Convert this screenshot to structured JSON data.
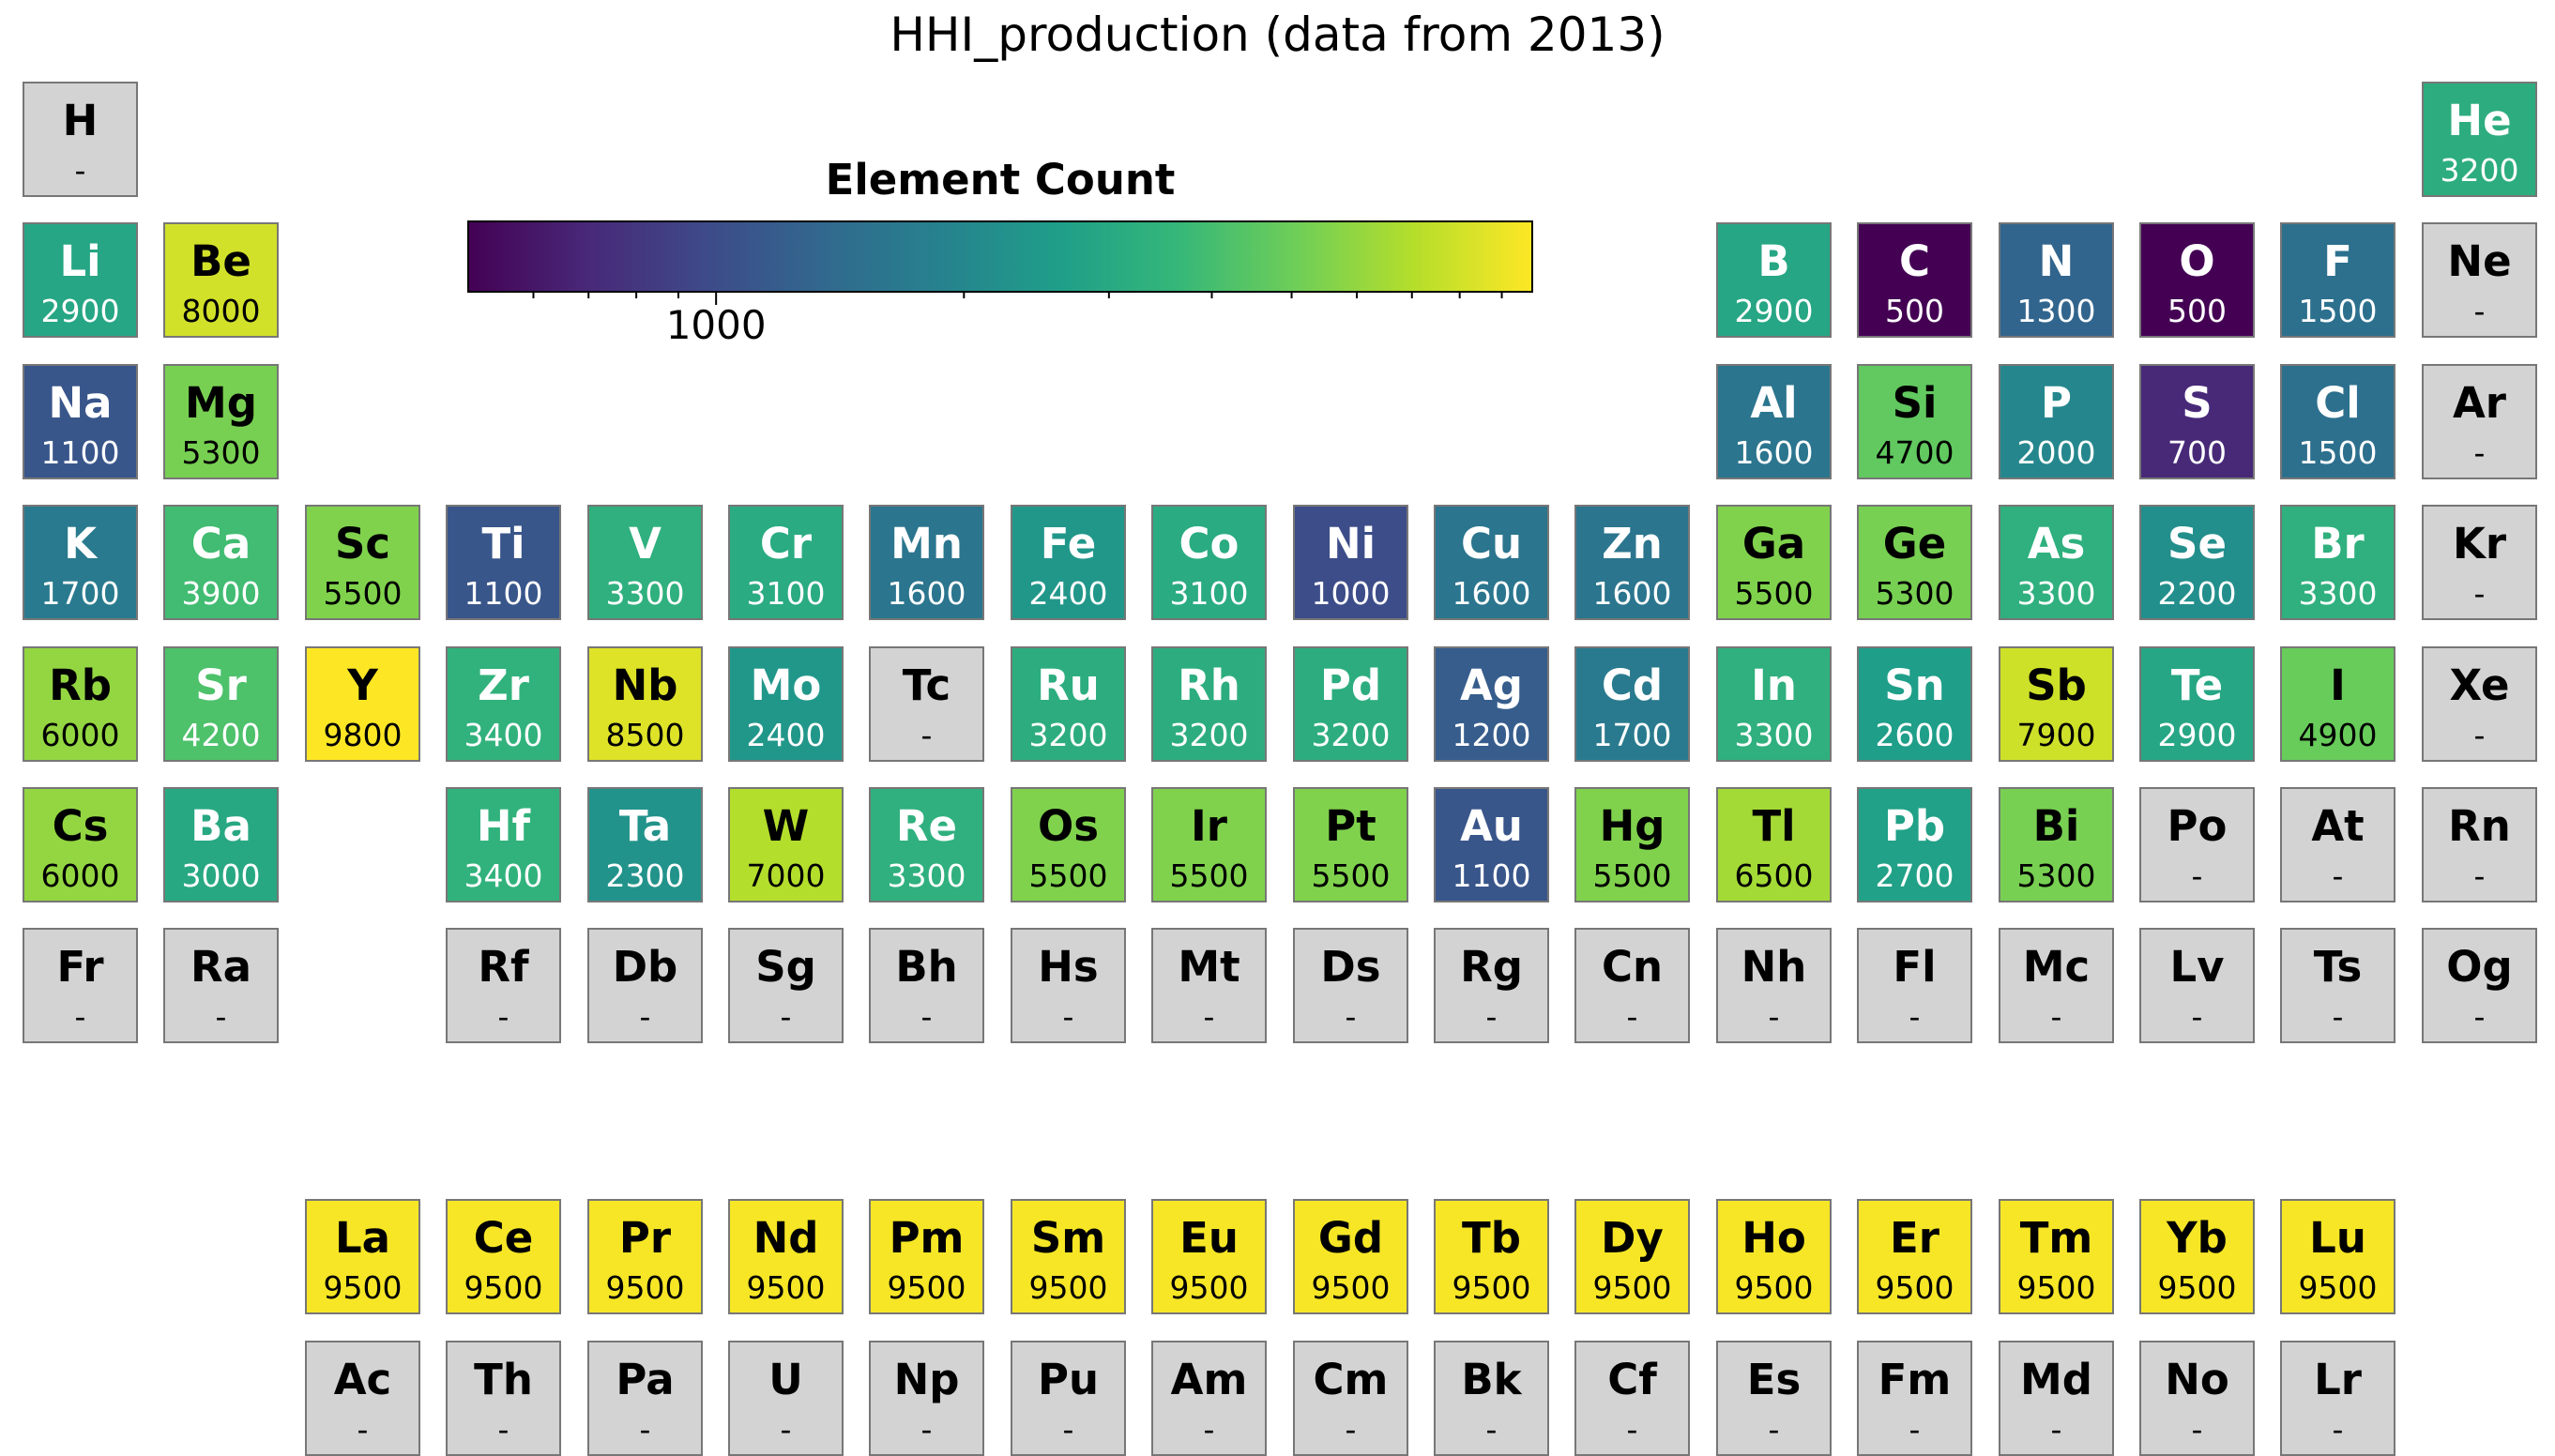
{
  "chart_data": {
    "type": "heatmap",
    "title": "HHI_production (data from 2013)",
    "colorbar": {
      "title": "Element Count",
      "scale": "log",
      "range": [
        500,
        9800
      ],
      "major_ticks": [
        1000
      ],
      "tick_labels": [
        "1000"
      ],
      "minor_ticks": [
        600,
        700,
        800,
        900,
        2000,
        3000,
        4000,
        5000,
        6000,
        7000,
        8000,
        9000
      ],
      "colormap": "viridis",
      "colors": [
        "#440154",
        "#482878",
        "#3e4a89",
        "#31688e",
        "#26828e",
        "#1f9e89",
        "#35b779",
        "#6ece58",
        "#b5de2b",
        "#fde725"
      ]
    },
    "missing_label": "-",
    "missing_color": "#d3d3d3",
    "elements": [
      {
        "symbol": "H",
        "value": null,
        "row": 1,
        "col": 1
      },
      {
        "symbol": "He",
        "value": 3200,
        "row": 1,
        "col": 18
      },
      {
        "symbol": "Li",
        "value": 2900,
        "row": 2,
        "col": 1
      },
      {
        "symbol": "Be",
        "value": 8000,
        "row": 2,
        "col": 2
      },
      {
        "symbol": "B",
        "value": 2900,
        "row": 2,
        "col": 13
      },
      {
        "symbol": "C",
        "value": 500,
        "row": 2,
        "col": 14
      },
      {
        "symbol": "N",
        "value": 1300,
        "row": 2,
        "col": 15
      },
      {
        "symbol": "O",
        "value": 500,
        "row": 2,
        "col": 16
      },
      {
        "symbol": "F",
        "value": 1500,
        "row": 2,
        "col": 17
      },
      {
        "symbol": "Ne",
        "value": null,
        "row": 2,
        "col": 18
      },
      {
        "symbol": "Na",
        "value": 1100,
        "row": 3,
        "col": 1
      },
      {
        "symbol": "Mg",
        "value": 5300,
        "row": 3,
        "col": 2
      },
      {
        "symbol": "Al",
        "value": 1600,
        "row": 3,
        "col": 13
      },
      {
        "symbol": "Si",
        "value": 4700,
        "row": 3,
        "col": 14
      },
      {
        "symbol": "P",
        "value": 2000,
        "row": 3,
        "col": 15
      },
      {
        "symbol": "S",
        "value": 700,
        "row": 3,
        "col": 16
      },
      {
        "symbol": "Cl",
        "value": 1500,
        "row": 3,
        "col": 17
      },
      {
        "symbol": "Ar",
        "value": null,
        "row": 3,
        "col": 18
      },
      {
        "symbol": "K",
        "value": 1700,
        "row": 4,
        "col": 1
      },
      {
        "symbol": "Ca",
        "value": 3900,
        "row": 4,
        "col": 2
      },
      {
        "symbol": "Sc",
        "value": 5500,
        "row": 4,
        "col": 3
      },
      {
        "symbol": "Ti",
        "value": 1100,
        "row": 4,
        "col": 4
      },
      {
        "symbol": "V",
        "value": 3300,
        "row": 4,
        "col": 5
      },
      {
        "symbol": "Cr",
        "value": 3100,
        "row": 4,
        "col": 6
      },
      {
        "symbol": "Mn",
        "value": 1600,
        "row": 4,
        "col": 7
      },
      {
        "symbol": "Fe",
        "value": 2400,
        "row": 4,
        "col": 8
      },
      {
        "symbol": "Co",
        "value": 3100,
        "row": 4,
        "col": 9
      },
      {
        "symbol": "Ni",
        "value": 1000,
        "row": 4,
        "col": 10
      },
      {
        "symbol": "Cu",
        "value": 1600,
        "row": 4,
        "col": 11
      },
      {
        "symbol": "Zn",
        "value": 1600,
        "row": 4,
        "col": 12
      },
      {
        "symbol": "Ga",
        "value": 5500,
        "row": 4,
        "col": 13
      },
      {
        "symbol": "Ge",
        "value": 5300,
        "row": 4,
        "col": 14
      },
      {
        "symbol": "As",
        "value": 3300,
        "row": 4,
        "col": 15
      },
      {
        "symbol": "Se",
        "value": 2200,
        "row": 4,
        "col": 16
      },
      {
        "symbol": "Br",
        "value": 3300,
        "row": 4,
        "col": 17
      },
      {
        "symbol": "Kr",
        "value": null,
        "row": 4,
        "col": 18
      },
      {
        "symbol": "Rb",
        "value": 6000,
        "row": 5,
        "col": 1
      },
      {
        "symbol": "Sr",
        "value": 4200,
        "row": 5,
        "col": 2
      },
      {
        "symbol": "Y",
        "value": 9800,
        "row": 5,
        "col": 3
      },
      {
        "symbol": "Zr",
        "value": 3400,
        "row": 5,
        "col": 4
      },
      {
        "symbol": "Nb",
        "value": 8500,
        "row": 5,
        "col": 5
      },
      {
        "symbol": "Mo",
        "value": 2400,
        "row": 5,
        "col": 6
      },
      {
        "symbol": "Tc",
        "value": null,
        "row": 5,
        "col": 7
      },
      {
        "symbol": "Ru",
        "value": 3200,
        "row": 5,
        "col": 8
      },
      {
        "symbol": "Rh",
        "value": 3200,
        "row": 5,
        "col": 9
      },
      {
        "symbol": "Pd",
        "value": 3200,
        "row": 5,
        "col": 10
      },
      {
        "symbol": "Ag",
        "value": 1200,
        "row": 5,
        "col": 11
      },
      {
        "symbol": "Cd",
        "value": 1700,
        "row": 5,
        "col": 12
      },
      {
        "symbol": "In",
        "value": 3300,
        "row": 5,
        "col": 13
      },
      {
        "symbol": "Sn",
        "value": 2600,
        "row": 5,
        "col": 14
      },
      {
        "symbol": "Sb",
        "value": 7900,
        "row": 5,
        "col": 15
      },
      {
        "symbol": "Te",
        "value": 2900,
        "row": 5,
        "col": 16
      },
      {
        "symbol": "I",
        "value": 4900,
        "row": 5,
        "col": 17
      },
      {
        "symbol": "Xe",
        "value": null,
        "row": 5,
        "col": 18
      },
      {
        "symbol": "Cs",
        "value": 6000,
        "row": 6,
        "col": 1
      },
      {
        "symbol": "Ba",
        "value": 3000,
        "row": 6,
        "col": 2
      },
      {
        "symbol": "Hf",
        "value": 3400,
        "row": 6,
        "col": 4
      },
      {
        "symbol": "Ta",
        "value": 2300,
        "row": 6,
        "col": 5
      },
      {
        "symbol": "W",
        "value": 7000,
        "row": 6,
        "col": 6
      },
      {
        "symbol": "Re",
        "value": 3300,
        "row": 6,
        "col": 7
      },
      {
        "symbol": "Os",
        "value": 5500,
        "row": 6,
        "col": 8
      },
      {
        "symbol": "Ir",
        "value": 5500,
        "row": 6,
        "col": 9
      },
      {
        "symbol": "Pt",
        "value": 5500,
        "row": 6,
        "col": 10
      },
      {
        "symbol": "Au",
        "value": 1100,
        "row": 6,
        "col": 11
      },
      {
        "symbol": "Hg",
        "value": 5500,
        "row": 6,
        "col": 12
      },
      {
        "symbol": "Tl",
        "value": 6500,
        "row": 6,
        "col": 13
      },
      {
        "symbol": "Pb",
        "value": 2700,
        "row": 6,
        "col": 14
      },
      {
        "symbol": "Bi",
        "value": 5300,
        "row": 6,
        "col": 15
      },
      {
        "symbol": "Po",
        "value": null,
        "row": 6,
        "col": 16
      },
      {
        "symbol": "At",
        "value": null,
        "row": 6,
        "col": 17
      },
      {
        "symbol": "Rn",
        "value": null,
        "row": 6,
        "col": 18
      },
      {
        "symbol": "Fr",
        "value": null,
        "row": 7,
        "col": 1
      },
      {
        "symbol": "Ra",
        "value": null,
        "row": 7,
        "col": 2
      },
      {
        "symbol": "Rf",
        "value": null,
        "row": 7,
        "col": 4
      },
      {
        "symbol": "Db",
        "value": null,
        "row": 7,
        "col": 5
      },
      {
        "symbol": "Sg",
        "value": null,
        "row": 7,
        "col": 6
      },
      {
        "symbol": "Bh",
        "value": null,
        "row": 7,
        "col": 7
      },
      {
        "symbol": "Hs",
        "value": null,
        "row": 7,
        "col": 8
      },
      {
        "symbol": "Mt",
        "value": null,
        "row": 7,
        "col": 9
      },
      {
        "symbol": "Ds",
        "value": null,
        "row": 7,
        "col": 10
      },
      {
        "symbol": "Rg",
        "value": null,
        "row": 7,
        "col": 11
      },
      {
        "symbol": "Cn",
        "value": null,
        "row": 7,
        "col": 12
      },
      {
        "symbol": "Nh",
        "value": null,
        "row": 7,
        "col": 13
      },
      {
        "symbol": "Fl",
        "value": null,
        "row": 7,
        "col": 14
      },
      {
        "symbol": "Mc",
        "value": null,
        "row": 7,
        "col": 15
      },
      {
        "symbol": "Lv",
        "value": null,
        "row": 7,
        "col": 16
      },
      {
        "symbol": "Ts",
        "value": null,
        "row": 7,
        "col": 17
      },
      {
        "symbol": "Og",
        "value": null,
        "row": 7,
        "col": 18
      },
      {
        "symbol": "La",
        "value": 9500,
        "row": 9,
        "col": 3
      },
      {
        "symbol": "Ce",
        "value": 9500,
        "row": 9,
        "col": 4
      },
      {
        "symbol": "Pr",
        "value": 9500,
        "row": 9,
        "col": 5
      },
      {
        "symbol": "Nd",
        "value": 9500,
        "row": 9,
        "col": 6
      },
      {
        "symbol": "Pm",
        "value": 9500,
        "row": 9,
        "col": 7
      },
      {
        "symbol": "Sm",
        "value": 9500,
        "row": 9,
        "col": 8
      },
      {
        "symbol": "Eu",
        "value": 9500,
        "row": 9,
        "col": 9
      },
      {
        "symbol": "Gd",
        "value": 9500,
        "row": 9,
        "col": 10
      },
      {
        "symbol": "Tb",
        "value": 9500,
        "row": 9,
        "col": 11
      },
      {
        "symbol": "Dy",
        "value": 9500,
        "row": 9,
        "col": 12
      },
      {
        "symbol": "Ho",
        "value": 9500,
        "row": 9,
        "col": 13
      },
      {
        "symbol": "Er",
        "value": 9500,
        "row": 9,
        "col": 14
      },
      {
        "symbol": "Tm",
        "value": 9500,
        "row": 9,
        "col": 15
      },
      {
        "symbol": "Yb",
        "value": 9500,
        "row": 9,
        "col": 16
      },
      {
        "symbol": "Lu",
        "value": 9500,
        "row": 9,
        "col": 17
      },
      {
        "symbol": "Ac",
        "value": null,
        "row": 10,
        "col": 3
      },
      {
        "symbol": "Th",
        "value": null,
        "row": 10,
        "col": 4
      },
      {
        "symbol": "Pa",
        "value": null,
        "row": 10,
        "col": 5
      },
      {
        "symbol": "U",
        "value": null,
        "row": 10,
        "col": 6
      },
      {
        "symbol": "Np",
        "value": null,
        "row": 10,
        "col": 7
      },
      {
        "symbol": "Pu",
        "value": null,
        "row": 10,
        "col": 8
      },
      {
        "symbol": "Am",
        "value": null,
        "row": 10,
        "col": 9
      },
      {
        "symbol": "Cm",
        "value": null,
        "row": 10,
        "col": 10
      },
      {
        "symbol": "Bk",
        "value": null,
        "row": 10,
        "col": 11
      },
      {
        "symbol": "Cf",
        "value": null,
        "row": 10,
        "col": 12
      },
      {
        "symbol": "Es",
        "value": null,
        "row": 10,
        "col": 13
      },
      {
        "symbol": "Fm",
        "value": null,
        "row": 10,
        "col": 14
      },
      {
        "symbol": "Md",
        "value": null,
        "row": 10,
        "col": 15
      },
      {
        "symbol": "No",
        "value": null,
        "row": 10,
        "col": 16
      },
      {
        "symbol": "Lr",
        "value": null,
        "row": 10,
        "col": 17
      }
    ]
  }
}
